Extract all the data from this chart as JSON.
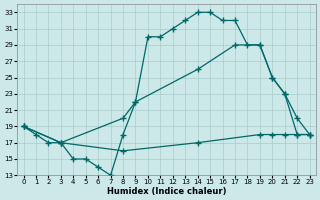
{
  "xlabel": "Humidex (Indice chaleur)",
  "background_color": "#cce8e8",
  "grid_color": "#b0d0d0",
  "line_color": "#006868",
  "xlim": [
    -0.5,
    23.5
  ],
  "ylim": [
    13,
    34
  ],
  "yticks": [
    13,
    15,
    17,
    19,
    21,
    23,
    25,
    27,
    29,
    31,
    33
  ],
  "xticks": [
    0,
    1,
    2,
    3,
    4,
    5,
    6,
    7,
    8,
    9,
    10,
    11,
    12,
    13,
    14,
    15,
    16,
    17,
    18,
    19,
    20,
    21,
    22,
    23
  ],
  "curve1_x": [
    0,
    1,
    2,
    3,
    4,
    5,
    6,
    7,
    8,
    9,
    10,
    11,
    12,
    13,
    14,
    15,
    16,
    17,
    18,
    19,
    20,
    21,
    22,
    23
  ],
  "curve1_y": [
    19,
    18,
    17,
    17,
    15,
    15,
    14,
    13,
    18,
    22,
    30,
    30,
    31,
    32,
    33,
    33,
    32,
    32,
    29,
    29,
    25,
    23,
    20,
    18
  ],
  "curve2_x": [
    0,
    3,
    8,
    9,
    14,
    17,
    19,
    20,
    21,
    22,
    23
  ],
  "curve2_y": [
    19,
    17,
    20,
    22,
    26,
    29,
    29,
    25,
    23,
    18,
    18
  ],
  "curve3_x": [
    0,
    3,
    8,
    14,
    19,
    20,
    21,
    22,
    23
  ],
  "curve3_y": [
    19,
    17,
    16,
    17,
    18,
    18,
    18,
    18,
    18
  ]
}
